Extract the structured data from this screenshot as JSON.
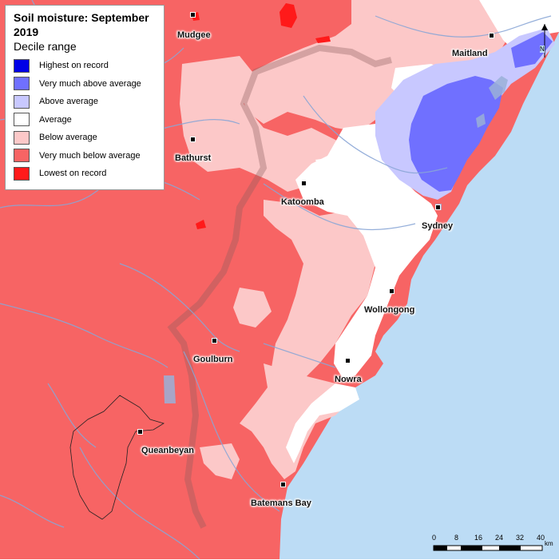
{
  "legend": {
    "title": "Soil moisture: September 2019",
    "subtitle": "Decile range",
    "items": [
      {
        "label": "Highest on record",
        "color": "#0000e6"
      },
      {
        "label": "Very much above average",
        "color": "#7070ff"
      },
      {
        "label": "Above average",
        "color": "#c8c8ff"
      },
      {
        "label": "Average",
        "color": "#ffffff"
      },
      {
        "label": "Below average",
        "color": "#fcc8c8"
      },
      {
        "label": "Very much below average",
        "color": "#f76464"
      },
      {
        "label": "Lowest on record",
        "color": "#ff1a1a"
      }
    ]
  },
  "cities": {
    "mudgee": "Mudgee",
    "maitland": "Maitland",
    "bathurst": "Bathurst",
    "katoomba": "Katoomba",
    "sydney": "Sydney",
    "wollongong": "Wollongong",
    "goulburn": "Goulburn",
    "nowra": "Nowra",
    "queanbeyan": "Queanbeyan",
    "batemans_bay": "Batemans Bay"
  },
  "scale": {
    "ticks": [
      "0",
      "8",
      "16",
      "24",
      "32",
      "40"
    ],
    "unit": "km"
  },
  "north": "N",
  "colors": {
    "ocean": "#bcdcf5",
    "rivers": "#8aa6d6"
  }
}
